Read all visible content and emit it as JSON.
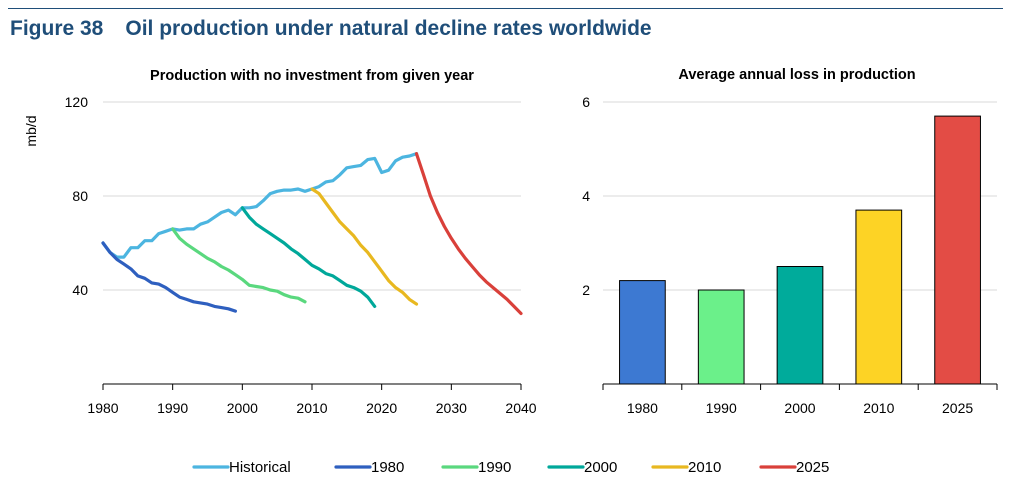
{
  "figure": {
    "number": "Figure 38",
    "title": "Oil production under natural decline rates worldwide"
  },
  "chart_data": [
    {
      "type": "line",
      "title": "Production with no investment from given year",
      "xlabel": "",
      "ylabel": "mb/d",
      "xlim": [
        1980,
        2040
      ],
      "ylim": [
        0,
        120
      ],
      "xticks": [
        1980,
        1990,
        2000,
        2010,
        2020,
        2030,
        2040
      ],
      "yticks": [
        40,
        80,
        120
      ],
      "grid": "horizontal",
      "legend": "bottom",
      "series": [
        {
          "name": "Historical",
          "color": "#4cb5e0",
          "x": [
            1980,
            1981,
            1982,
            1983,
            1984,
            1985,
            1986,
            1987,
            1988,
            1989,
            1990,
            1991,
            1992,
            1993,
            1994,
            1995,
            1996,
            1997,
            1998,
            1999,
            2000,
            2001,
            2002,
            2003,
            2004,
            2005,
            2006,
            2007,
            2008,
            2009,
            2010,
            2011,
            2012,
            2013,
            2014,
            2015,
            2016,
            2017,
            2018,
            2019,
            2020,
            2021,
            2022,
            2023,
            2024,
            2025
          ],
          "y": [
            60,
            56,
            54,
            54,
            58,
            58,
            61,
            61,
            64,
            65,
            66,
            65.5,
            66,
            66,
            68,
            69,
            71,
            73,
            74,
            72,
            75,
            75,
            75.5,
            78,
            81,
            82,
            82.5,
            82.5,
            83,
            82,
            83,
            84,
            86,
            86.5,
            89,
            92,
            92.5,
            93,
            95.5,
            96,
            90,
            91,
            95,
            96.5,
            97,
            98
          ]
        },
        {
          "name": "1980",
          "color": "#2e5fbf",
          "x": [
            1980,
            1981,
            1982,
            1983,
            1984,
            1985,
            1986,
            1987,
            1988,
            1989,
            1990,
            1991,
            1992,
            1993,
            1994,
            1995,
            1996,
            1997,
            1998,
            1999
          ],
          "y": [
            60,
            56,
            53,
            51,
            49,
            46,
            45,
            43,
            42.5,
            41,
            39,
            37,
            36,
            35,
            34.5,
            34,
            33,
            32.5,
            32,
            31
          ]
        },
        {
          "name": "1990",
          "color": "#5ad87e",
          "x": [
            1990,
            1991,
            1992,
            1993,
            1994,
            1995,
            1996,
            1997,
            1998,
            1999,
            2000,
            2001,
            2002,
            2003,
            2004,
            2005,
            2006,
            2007,
            2008,
            2009
          ],
          "y": [
            66,
            62,
            59.5,
            57.5,
            55.5,
            53.5,
            52,
            50,
            48.5,
            46.5,
            44.5,
            42,
            41.5,
            41,
            40,
            39.5,
            38,
            37,
            36.5,
            35
          ]
        },
        {
          "name": "2000",
          "color": "#00a89a",
          "x": [
            2000,
            2001,
            2002,
            2003,
            2004,
            2005,
            2006,
            2007,
            2008,
            2009,
            2010,
            2011,
            2012,
            2013,
            2014,
            2015,
            2016,
            2017,
            2018,
            2019
          ],
          "y": [
            75,
            71,
            68,
            66,
            64,
            62,
            60,
            57.5,
            55.5,
            53,
            50.5,
            49,
            47,
            46,
            44,
            42,
            41,
            39.5,
            37,
            33
          ]
        },
        {
          "name": "2010",
          "color": "#e8b820",
          "x": [
            2010,
            2011,
            2012,
            2013,
            2014,
            2015,
            2016,
            2017,
            2018,
            2019,
            2020,
            2021,
            2022,
            2023,
            2024,
            2025
          ],
          "y": [
            83,
            81,
            77,
            73,
            69,
            66,
            63,
            59,
            56,
            52,
            48,
            44,
            41,
            39,
            36,
            34
          ]
        },
        {
          "name": "2025",
          "color": "#d9403a",
          "x": [
            2025,
            2026,
            2027,
            2028,
            2029,
            2030,
            2031,
            2032,
            2033,
            2034,
            2035,
            2036,
            2037,
            2038,
            2039,
            2040
          ],
          "y": [
            98,
            89,
            80,
            73,
            67,
            62,
            57.5,
            53.5,
            50,
            46.5,
            43.5,
            41,
            38.5,
            36,
            33,
            30
          ]
        }
      ]
    },
    {
      "type": "bar",
      "title": "Average annual loss in production",
      "xlabel": "",
      "ylabel": "",
      "ylim": [
        0,
        6
      ],
      "yticks": [
        2,
        4,
        6
      ],
      "grid": "horizontal",
      "categories": [
        "1980",
        "1990",
        "2000",
        "2010",
        "2025"
      ],
      "values": [
        2.2,
        2.0,
        2.5,
        3.7,
        5.7
      ],
      "colors": [
        "#3d79d2",
        "#6bf08a",
        "#00ab9b",
        "#fdd325",
        "#e34c45"
      ]
    }
  ]
}
